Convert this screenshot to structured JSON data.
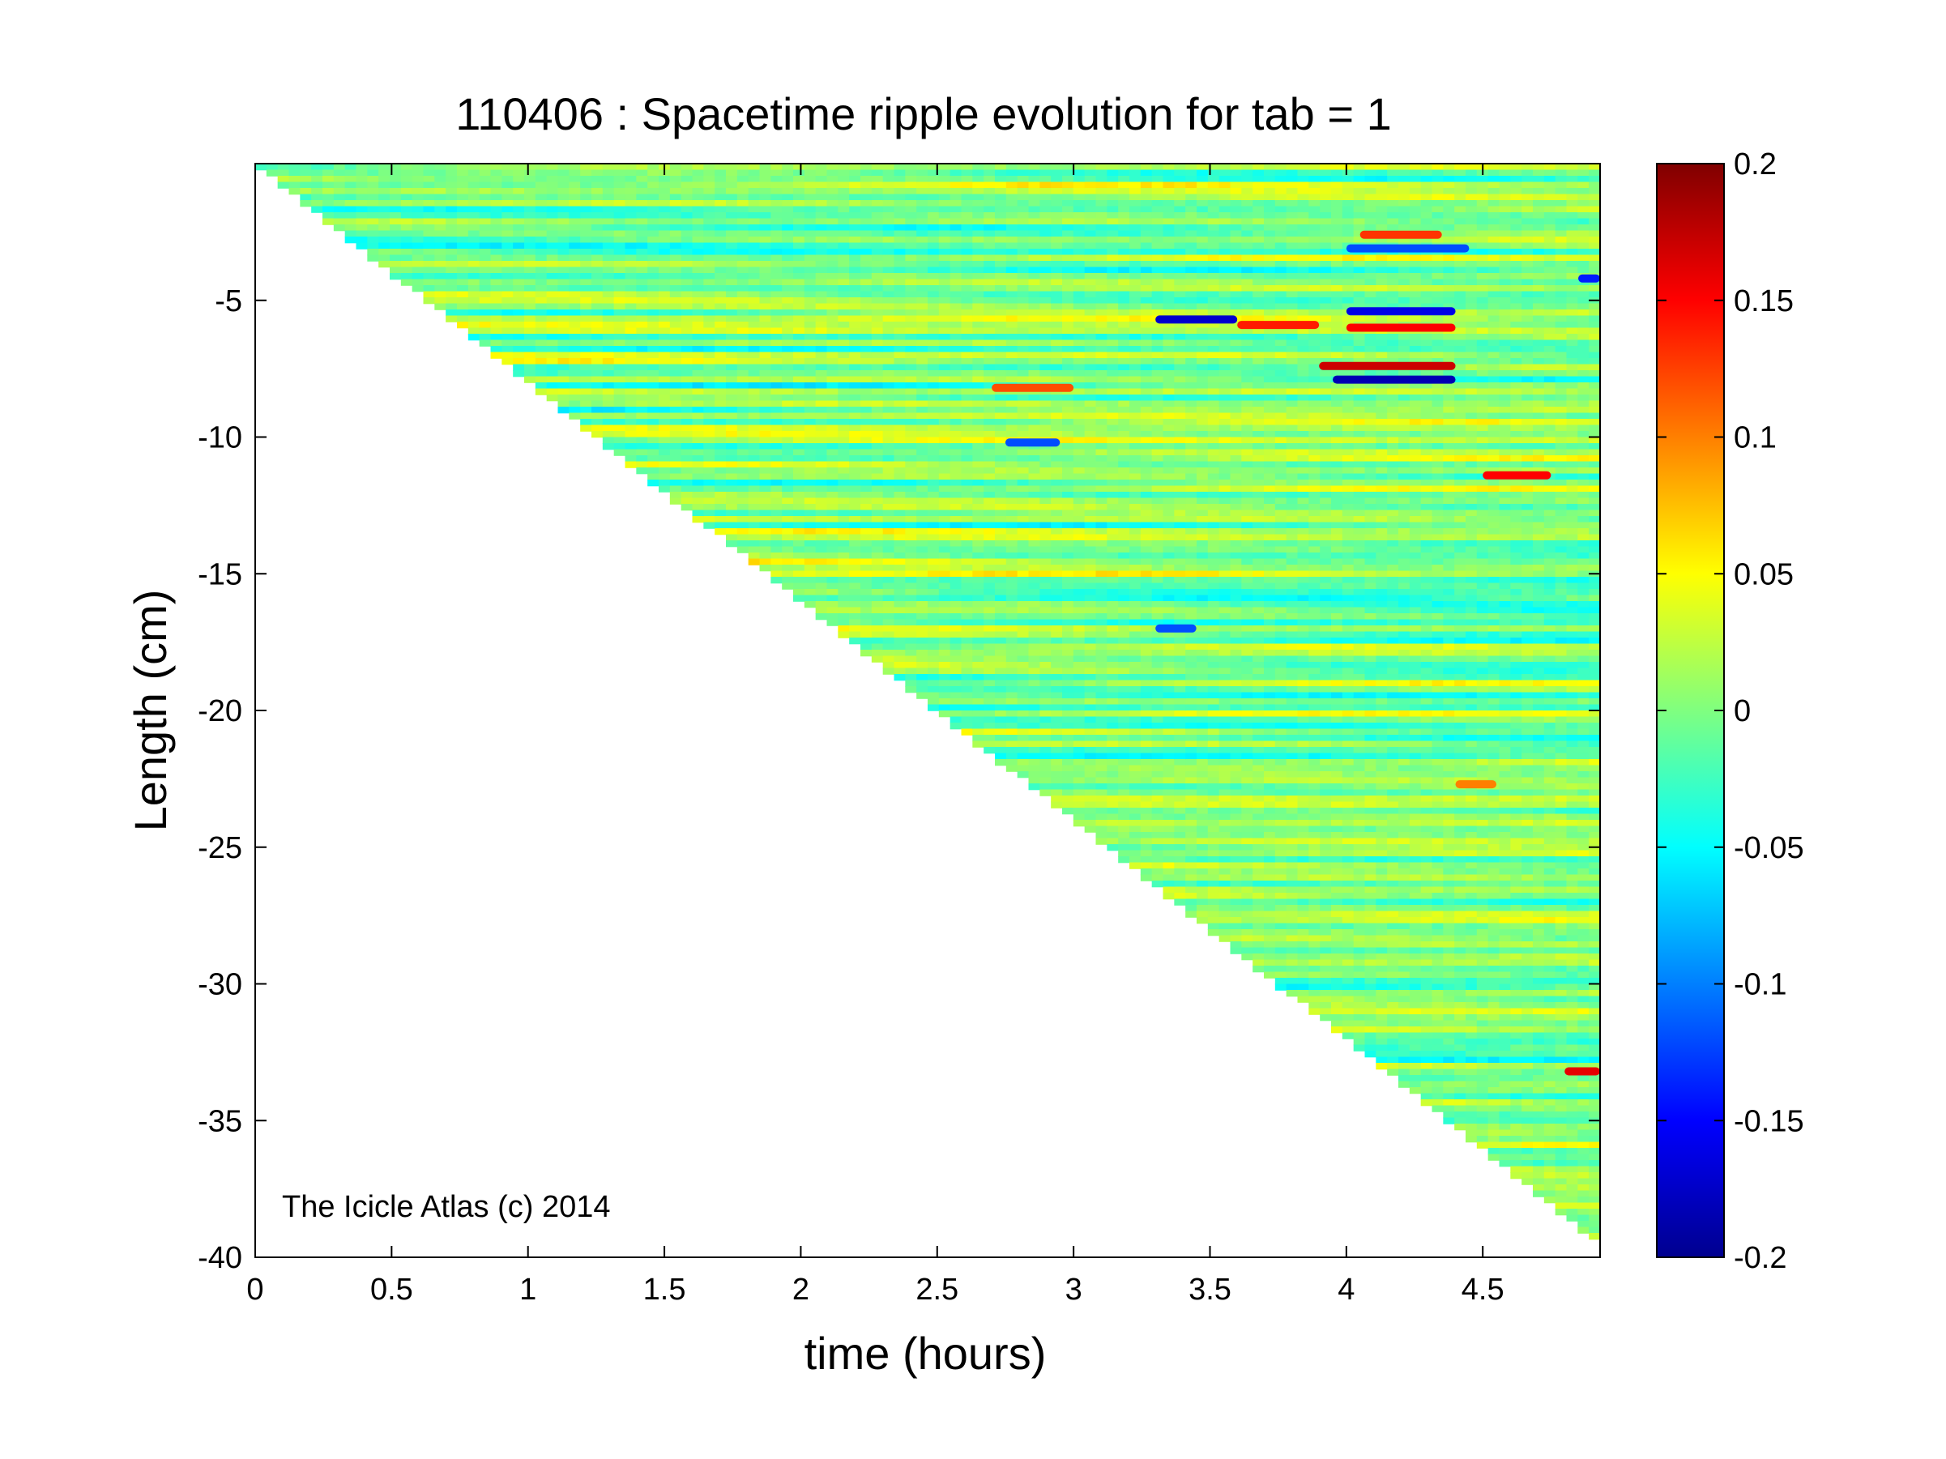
{
  "chart_data": {
    "type": "heatmap",
    "title": "110406 : Spacetime ripple evolution for tab = 1",
    "xlabel": "time (hours)",
    "ylabel": "Length (cm)",
    "xlim": [
      0,
      4.93
    ],
    "ylim": [
      -40,
      0
    ],
    "x_ticks": [
      0,
      0.5,
      1,
      1.5,
      2,
      2.5,
      3,
      3.5,
      4,
      4.5
    ],
    "x_tick_labels": [
      "0",
      "0.5",
      "1",
      "1.5",
      "2",
      "2.5",
      "3",
      "3.5",
      "4",
      "4.5"
    ],
    "y_ticks": [
      -5,
      -10,
      -15,
      -20,
      -25,
      -30,
      -35,
      -40
    ],
    "y_tick_labels": [
      "-5",
      "-10",
      "-15",
      "-20",
      "-25",
      "-30",
      "-35",
      "-40"
    ],
    "colorbar": {
      "colormap": "jet",
      "clim": [
        -0.2,
        0.2
      ],
      "ticks": [
        0.2,
        0.15,
        0.1,
        0.05,
        0,
        -0.05,
        -0.1,
        -0.15,
        -0.2
      ],
      "tick_labels": [
        "0.2",
        "0.15",
        "0.1",
        "0.05",
        "0",
        "-0.05",
        "-0.1",
        "-0.15",
        "-0.2"
      ]
    },
    "boundary": {
      "description_points": [
        [
          0,
          0
        ],
        [
          4.93,
          -39.5
        ]
      ]
    },
    "grid": false,
    "annotation": "The Icicle Atlas (c) 2014",
    "features": [
      {
        "t0": 3.3,
        "t1": 3.6,
        "y": -5.7,
        "value": -0.17
      },
      {
        "t0": 3.6,
        "t1": 3.9,
        "y": -5.9,
        "value": 0.14
      },
      {
        "t0": 3.9,
        "t1": 4.4,
        "y": -7.4,
        "value": 0.17
      },
      {
        "t0": 3.95,
        "t1": 4.4,
        "y": -7.9,
        "value": -0.18
      },
      {
        "t0": 4.0,
        "t1": 4.4,
        "y": -6.0,
        "value": 0.15
      },
      {
        "t0": 4.0,
        "t1": 4.4,
        "y": -5.4,
        "value": -0.16
      },
      {
        "t0": 4.05,
        "t1": 4.35,
        "y": -2.6,
        "value": 0.13
      },
      {
        "t0": 4.0,
        "t1": 4.45,
        "y": -3.1,
        "value": -0.12
      },
      {
        "t0": 4.5,
        "t1": 4.75,
        "y": -11.4,
        "value": 0.15
      },
      {
        "t0": 4.8,
        "t1": 4.93,
        "y": -33.2,
        "value": 0.16
      },
      {
        "t0": 2.7,
        "t1": 3.0,
        "y": -8.2,
        "value": 0.12
      },
      {
        "t0": 2.75,
        "t1": 2.95,
        "y": -10.2,
        "value": -0.12
      },
      {
        "t0": 3.3,
        "t1": 3.45,
        "y": -17.0,
        "value": -0.12
      },
      {
        "t0": 4.4,
        "t1": 4.55,
        "y": -22.7,
        "value": 0.1
      },
      {
        "t0": 4.85,
        "t1": 4.93,
        "y": -4.2,
        "value": -0.14
      }
    ]
  }
}
